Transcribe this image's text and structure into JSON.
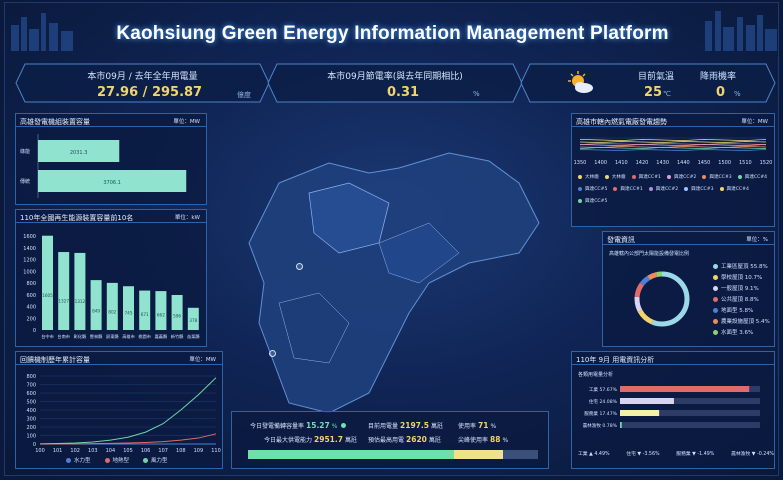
{
  "header": {
    "title": "Kaohsiung Green Energy Information Management Platform"
  },
  "kpis": {
    "usage": {
      "label": "本市09月 / 去年全年用電量",
      "current": "27.96",
      "total": "295.87",
      "unit": "億度"
    },
    "saving": {
      "label": "本市09月節電率(與去年同期相比)",
      "value": "0.31",
      "unit": "%"
    },
    "weather": {
      "temp_label": "目前氣溫",
      "temp_value": "25",
      "temp_unit": "℃",
      "rain_label": "降雨機率",
      "rain_value": "0",
      "rain_unit": "%",
      "icon": "partly-cloudy-icon"
    }
  },
  "panels": {
    "gen_capacity": {
      "title": "高雄發電機組裝置容量",
      "unit": "單位：MW",
      "chart_data": {
        "type": "bar",
        "orientation": "horizontal",
        "categories": [
          "綠能",
          "傳統"
        ],
        "values": [
          2031.3,
          3706.1
        ]
      }
    },
    "top10": {
      "title": "110年全國再生能源裝置容量前10名",
      "unit": "單位：kW",
      "chart_data": {
        "type": "bar",
        "categories": [
          "台中市",
          "台南市",
          "彰化縣",
          "雲林縣",
          "屏東縣",
          "高雄市",
          "桃園市",
          "嘉義縣",
          "新竹縣",
          "苗栗縣"
        ],
        "values": [
          1605,
          1327,
          1312,
          849,
          802,
          745,
          671,
          662,
          596,
          378
        ],
        "ylim": [
          0,
          1600
        ],
        "yticks": [
          "0",
          "200",
          "400",
          "600",
          "800",
          "1000",
          "1200",
          "1400",
          "1600"
        ]
      }
    },
    "history": {
      "title": "回饋機制歷年累計容量",
      "unit": "單位：MW",
      "chart_data": {
        "type": "line",
        "x": [
          "100",
          "101",
          "102",
          "103",
          "104",
          "105",
          "106",
          "107",
          "108",
          "109",
          "110"
        ],
        "yticks": [
          "0",
          "100",
          "200",
          "300",
          "400",
          "500",
          "600",
          "700",
          "800"
        ],
        "ylim": [
          0,
          800
        ],
        "series": [
          {
            "name": "水力型",
            "color": "#4f7fd9",
            "values": [
              0,
              0,
              0,
              0,
              0,
              0,
              0,
              0,
              0,
              0,
              0
            ]
          },
          {
            "name": "地熱型",
            "color": "#e06b6b",
            "values": [
              0,
              1,
              2,
              4,
              8,
              12,
              18,
              28,
              45,
              70,
              120
            ]
          },
          {
            "name": "風力型",
            "color": "#6fd6a8",
            "values": [
              2,
              6,
              12,
              24,
              45,
              80,
              140,
              240,
              400,
              580,
              780
            ]
          }
        ]
      }
    },
    "realtime_gen": {
      "title": "高雄市轄內燃氣電廠發電趨勢",
      "unit": "單位：MW",
      "chart_data": {
        "type": "line",
        "x": [
          "1350",
          "1400",
          "1410",
          "1420",
          "1430",
          "1440",
          "1450",
          "1500",
          "1510",
          "1520"
        ],
        "series_names": [
          "大林廠",
          "大林廠",
          "興達CC#1",
          "興達CC#2",
          "興達CC#3",
          "興達CC#4",
          "興達CC#5",
          "興達CC#1",
          "興達CC#2",
          "興達CC#3",
          "興達CC#4",
          "興達CC#5"
        ],
        "series_colors": [
          "#f3d36b",
          "#e8d77a",
          "#e06b6b",
          "#d9a3d9",
          "#f08a5d",
          "#6fd6a8",
          "#4f7fd9",
          "#e06b6b",
          "#b28be0",
          "#9cc3ff",
          "#f3d36b",
          "#6fd6a8"
        ]
      }
    },
    "gen_info": {
      "title": "發電資訊",
      "unit": "單位：%",
      "subtitle": "高雄轄內公部門太陽能設備發電比例",
      "chart_data": {
        "type": "pie",
        "labels": [
          "工業區屋頂",
          "學校屋頂",
          "一般屋頂",
          "公共屋頂",
          "地面型",
          "農業設施",
          "水面型"
        ],
        "values": [
          55.8,
          10.7,
          9.1,
          8.8,
          5.8,
          5.4,
          3.6
        ],
        "display": [
          "工業區屋頂 55.8%",
          "學校屋頂 10.7%",
          "一般屋頂 9.1%",
          "公共屋頂 8.8%",
          "地面型 5.8%",
          "農業設施屋頂 5.4%",
          "水面型 3.6%"
        ],
        "colors": [
          "#9cd8e8",
          "#f3d36b",
          "#d9d4f0",
          "#e06b6b",
          "#4f7fd9",
          "#f08a5d",
          "#8fd06f"
        ]
      }
    },
    "usage_analysis": {
      "title": "110年 9月 用電資訊分析",
      "subtitle": "各類用電量分析",
      "chart_data": {
        "type": "bar",
        "orientation": "horizontal",
        "categories": [
          "工業",
          "住宅",
          "服務業",
          "農林漁牧"
        ],
        "labels": [
          "工業 57.67%",
          "住宅 24.08%",
          "服務業 17.47%",
          "農林漁牧 0.78%"
        ],
        "values": [
          57.67,
          24.08,
          17.47,
          0.78
        ],
        "colors": [
          "#e06b6b",
          "#d9d4f0",
          "#f3f0a8",
          "#6fd6a8"
        ]
      },
      "footer": [
        "工業 ▲ 4.49%",
        "住宅 ▼ -3.56%",
        "服務業 ▼ -1.49%",
        "農林漁牧 ▼ -0.24%"
      ]
    }
  },
  "bottom": {
    "row1": {
      "a_label": "今日發電備轉容量率",
      "a_value": "15.27",
      "a_unit": "%",
      "b_label": "目前用電量",
      "b_value": "2197.5",
      "b_unit": "萬瓩",
      "c_label": "使用率",
      "c_value": "71",
      "c_unit": "%"
    },
    "row2": {
      "a_label": "今日最大供電能力",
      "a_value": "2951.7",
      "a_unit": "萬瓩",
      "b_label": "預估最高用電",
      "b_value": "2620",
      "b_unit": "萬瓩",
      "c_label": "尖峰使用率",
      "c_value": "88",
      "c_unit": "%"
    },
    "progress": {
      "usage": 71,
      "peak": 88
    }
  }
}
